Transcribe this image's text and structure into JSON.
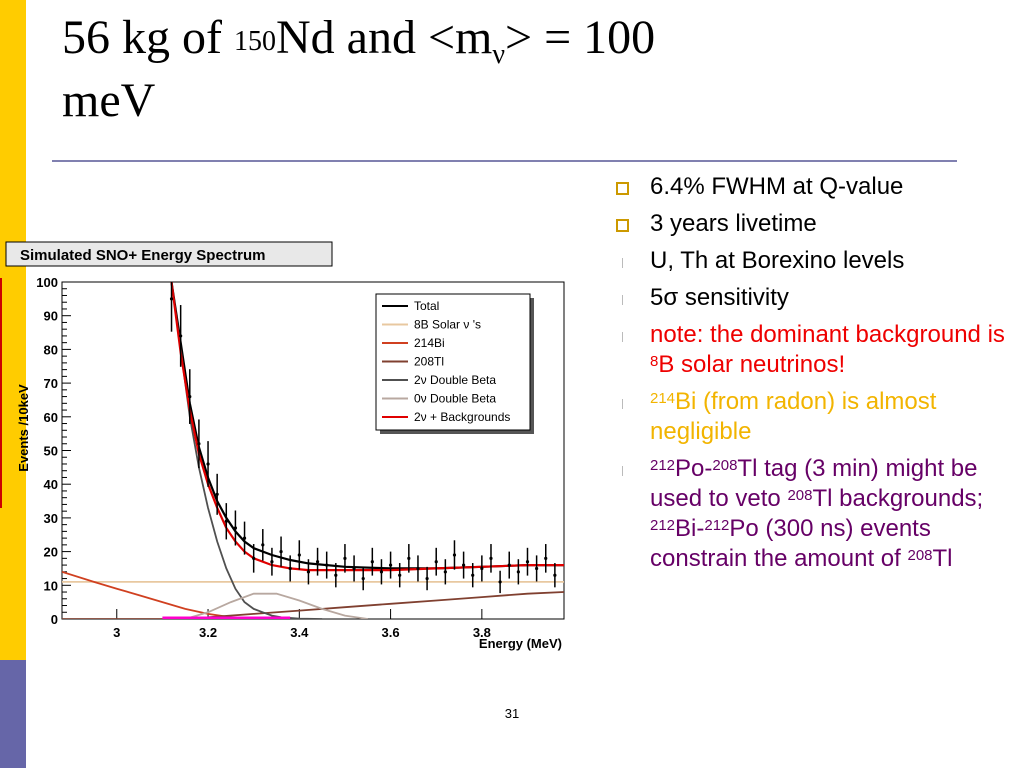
{
  "title": {
    "part1": "56 kg of ",
    "sup_150": "150",
    "part2": "Nd and <m",
    "sub_nu": "ν",
    "part3": "> = 100",
    "line2": "meV"
  },
  "bullets": [
    {
      "marker": "square",
      "color": "black",
      "segments": [
        {
          "text": "6.4% FWHM at Q-value"
        }
      ]
    },
    {
      "marker": "square",
      "color": "black",
      "segments": [
        {
          "text": "3 years livetime"
        }
      ]
    },
    {
      "marker": "thin",
      "color": "black",
      "segments": [
        {
          "text": "U, Th at Borexino levels"
        }
      ]
    },
    {
      "marker": "thin",
      "color": "black",
      "segments": [
        {
          "text": "5σ sensitivity"
        }
      ]
    },
    {
      "marker": "thin",
      "color": "red",
      "segments": [
        {
          "text": "note: the dominant background is "
        },
        {
          "sup": "8"
        },
        {
          "text": "B solar neutrinos!"
        }
      ]
    },
    {
      "marker": "thin",
      "color": "yellow",
      "segments": [
        {
          "sup": "214"
        },
        {
          "text": "Bi (from radon) is almost negligible"
        }
      ]
    },
    {
      "marker": "thin",
      "color": "purple",
      "segments": [
        {
          "sup": "212"
        },
        {
          "text": "Po-"
        },
        {
          "sup": "208"
        },
        {
          "text": "Tl tag (3 min) might be used to veto "
        },
        {
          "sup": "208"
        },
        {
          "text": "Tl backgrounds; "
        },
        {
          "sup": "212"
        },
        {
          "text": "Bi-"
        },
        {
          "sup": "212"
        },
        {
          "text": "Po (300 ns) events constrain the amount of "
        },
        {
          "sup": "208"
        },
        {
          "text": "Tl"
        }
      ]
    }
  ],
  "slide_number": "31",
  "colors": {
    "gold_bar": "#ffcc00",
    "purple_bar": "#6666a8",
    "marker": "#cc9900",
    "red_text": "#ee0000",
    "yellow_text": "#f2b400",
    "purple_text": "#660066"
  },
  "chart_data": {
    "type": "line",
    "title": "Simulated SNO+ Energy Spectrum",
    "xlabel": "Energy (MeV)",
    "ylabel": "Events /10keV",
    "xlim": [
      2.88,
      3.98
    ],
    "ylim": [
      0,
      100
    ],
    "x_ticks": [
      "3",
      "3.2",
      "3.4",
      "3.6",
      "3.8"
    ],
    "y_ticks": [
      "0",
      "10",
      "20",
      "30",
      "40",
      "50",
      "60",
      "70",
      "80",
      "90",
      "100"
    ],
    "grid": false,
    "legend_position": "top-right",
    "series": [
      {
        "name": "Total",
        "color": "#000000",
        "x": [
          3.12,
          3.14,
          3.16,
          3.18,
          3.2,
          3.22,
          3.24,
          3.26,
          3.28,
          3.3,
          3.34,
          3.38,
          3.42,
          3.5,
          3.6,
          3.7,
          3.8,
          3.9,
          3.98
        ],
        "y": [
          100,
          82,
          64,
          51,
          42,
          35,
          30,
          26,
          23,
          21,
          19,
          17.5,
          16.5,
          15.5,
          15,
          15,
          15.5,
          16,
          16
        ]
      },
      {
        "name": "8B Solar ν 's",
        "color": "#e8c8a0",
        "x": [
          2.88,
          3.2,
          3.6,
          3.98
        ],
        "y": [
          11,
          11,
          11,
          11
        ]
      },
      {
        "name": "214Bi",
        "color": "#d04020",
        "x": [
          2.88,
          2.95,
          3.0,
          3.05,
          3.1,
          3.15,
          3.2,
          3.25,
          3.3
        ],
        "y": [
          14,
          11,
          9,
          7,
          5,
          3,
          1.5,
          0.5,
          0
        ]
      },
      {
        "name": "208Tl",
        "color": "#804030",
        "x": [
          2.88,
          3.1,
          3.2,
          3.3,
          3.4,
          3.5,
          3.6,
          3.7,
          3.8,
          3.9,
          3.98
        ],
        "y": [
          0,
          0,
          0.5,
          1.5,
          2.5,
          3.5,
          4.5,
          5.5,
          6.5,
          7.5,
          8
        ]
      },
      {
        "name": "2ν Double Beta",
        "color": "#505050",
        "x": [
          3.12,
          3.14,
          3.16,
          3.18,
          3.2,
          3.22,
          3.24,
          3.26,
          3.28,
          3.3,
          3.32,
          3.34,
          3.36,
          3.4,
          3.45
        ],
        "y": [
          100,
          80,
          60,
          45,
          33,
          23,
          15,
          9,
          5,
          3,
          2,
          1,
          0.5,
          0.1,
          0
        ]
      },
      {
        "name": "0ν Double Beta",
        "color": "#b8a8a0",
        "x": [
          3.15,
          3.2,
          3.25,
          3.3,
          3.35,
          3.4,
          3.45,
          3.5,
          3.55
        ],
        "y": [
          0,
          2,
          5,
          7.5,
          7.5,
          5.5,
          3,
          1,
          0
        ]
      },
      {
        "name": "2ν + Backgrounds",
        "color": "#e00000",
        "x": [
          3.12,
          3.14,
          3.16,
          3.18,
          3.2,
          3.22,
          3.24,
          3.26,
          3.28,
          3.3,
          3.34,
          3.38,
          3.42,
          3.5,
          3.6,
          3.7,
          3.8,
          3.9,
          3.98
        ],
        "y": [
          100,
          79,
          62,
          49,
          40,
          33,
          27,
          23,
          20,
          18,
          16,
          15,
          14.5,
          14.5,
          14.5,
          15,
          15.5,
          16,
          16
        ]
      }
    ],
    "data_points": {
      "x": [
        3.12,
        3.14,
        3.16,
        3.18,
        3.2,
        3.22,
        3.24,
        3.26,
        3.28,
        3.3,
        3.32,
        3.34,
        3.36,
        3.38,
        3.4,
        3.42,
        3.44,
        3.46,
        3.48,
        3.5,
        3.52,
        3.54,
        3.56,
        3.58,
        3.6,
        3.62,
        3.64,
        3.66,
        3.68,
        3.7,
        3.72,
        3.74,
        3.76,
        3.78,
        3.8,
        3.82,
        3.84,
        3.86,
        3.88,
        3.9,
        3.92,
        3.94,
        3.96
      ],
      "y": [
        95,
        84,
        66,
        52,
        46,
        37,
        29,
        27,
        24,
        18,
        22,
        17,
        20,
        15,
        19,
        14,
        17,
        16,
        13,
        18,
        15,
        12,
        17,
        14,
        16,
        13,
        18,
        15,
        12,
        17,
        14,
        19,
        16,
        13,
        15,
        18,
        11,
        16,
        14,
        17,
        15,
        18,
        13
      ]
    },
    "magenta_marker": {
      "x_start": 3.1,
      "x_end": 3.38,
      "y": 0
    }
  }
}
